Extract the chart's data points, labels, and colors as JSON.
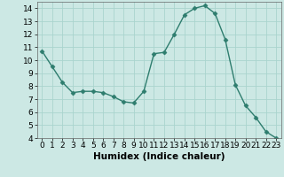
{
  "x": [
    0,
    1,
    2,
    3,
    4,
    5,
    6,
    7,
    8,
    9,
    10,
    11,
    12,
    13,
    14,
    15,
    16,
    17,
    18,
    19,
    20,
    21,
    22,
    23
  ],
  "y": [
    10.7,
    9.5,
    8.3,
    7.5,
    7.6,
    7.6,
    7.5,
    7.2,
    6.8,
    6.7,
    7.6,
    10.5,
    10.6,
    12.0,
    13.5,
    14.0,
    14.2,
    13.6,
    11.6,
    8.1,
    6.5,
    5.6,
    4.5,
    4.0
  ],
  "line_color": "#2e7d6e",
  "marker": "D",
  "marker_size": 2.5,
  "bg_color": "#cce8e4",
  "grid_color": "#aad4ce",
  "xlabel": "Humidex (Indice chaleur)",
  "xlim": [
    -0.5,
    23.5
  ],
  "ylim": [
    4,
    14.5
  ],
  "yticks": [
    4,
    5,
    6,
    7,
    8,
    9,
    10,
    11,
    12,
    13,
    14
  ],
  "xticks": [
    0,
    1,
    2,
    3,
    4,
    5,
    6,
    7,
    8,
    9,
    10,
    11,
    12,
    13,
    14,
    15,
    16,
    17,
    18,
    19,
    20,
    21,
    22,
    23
  ],
  "xlabel_fontsize": 7.5,
  "tick_fontsize": 6.5,
  "linewidth": 1.0
}
